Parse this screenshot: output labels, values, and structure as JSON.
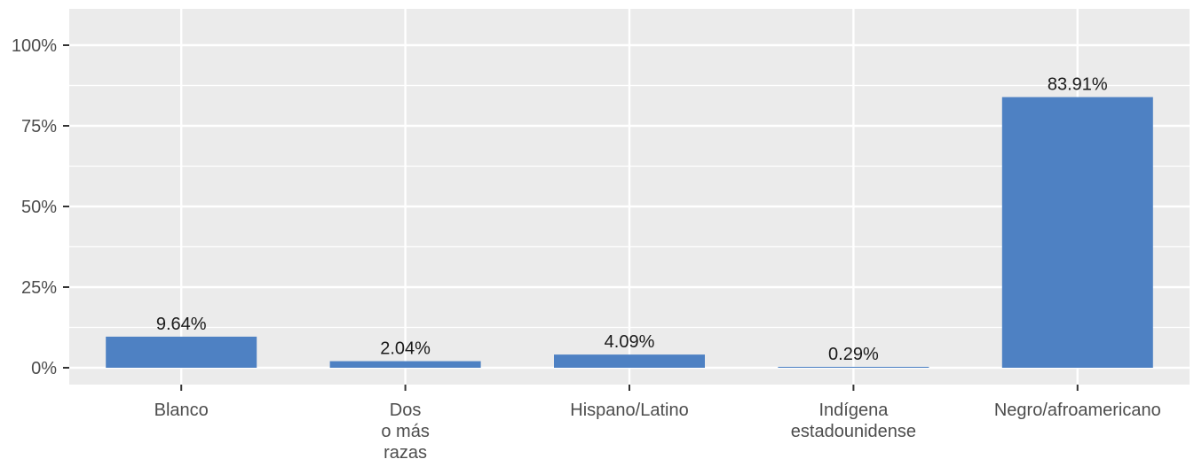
{
  "chart_data": {
    "type": "bar",
    "title": "",
    "xlabel": "",
    "ylabel": "",
    "categories": [
      [
        "Blanco"
      ],
      [
        "Dos",
        "o más",
        "razas"
      ],
      [
        "Hispano/Latino"
      ],
      [
        "Indígena",
        "estadounidense"
      ],
      [
        "Negro/afroamericano"
      ]
    ],
    "values": [
      9.64,
      2.04,
      4.09,
      0.29,
      83.91
    ],
    "value_labels": [
      "9.64%",
      "2.04%",
      "4.09%",
      "0.29%",
      "83.91%"
    ],
    "ylim": [
      0,
      100
    ],
    "yticks": [
      0,
      25,
      50,
      75,
      100
    ],
    "ytick_labels": [
      "0%",
      "25%",
      "50%",
      "75%",
      "100%"
    ],
    "grid": true,
    "legend": "none",
    "colors": {
      "bar": "#4e81c3",
      "panel": "#ebebeb",
      "grid": "#ffffff"
    }
  }
}
